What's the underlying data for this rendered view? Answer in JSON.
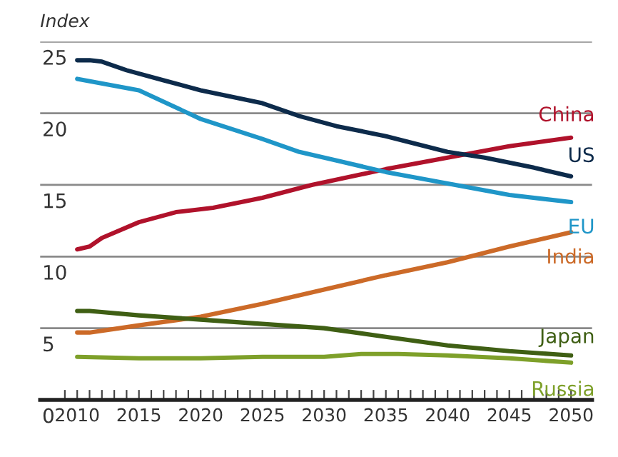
{
  "chart_data": {
    "type": "line",
    "ylabel": "Index",
    "xlim": [
      2007,
      2051.7
    ],
    "ylim": [
      0,
      25
    ],
    "yticks": [
      0,
      5,
      10,
      15,
      20,
      25
    ],
    "xticks": [
      {
        "value": 2009,
        "label": null
      },
      2010,
      {
        "value": 2011,
        "label": null
      },
      {
        "value": 2012,
        "label": null
      },
      {
        "value": 2013,
        "label": null
      },
      {
        "value": 2014,
        "label": null
      },
      2015,
      {
        "value": 2016,
        "label": null
      },
      {
        "value": 2017,
        "label": null
      },
      {
        "value": 2018,
        "label": null
      },
      {
        "value": 2019,
        "label": null
      },
      2020,
      {
        "value": 2021,
        "label": null
      },
      {
        "value": 2022,
        "label": null
      },
      {
        "value": 2023,
        "label": null
      },
      {
        "value": 2024,
        "label": null
      },
      2025,
      {
        "value": 2026,
        "label": null
      },
      {
        "value": 2027,
        "label": null
      },
      {
        "value": 2028,
        "label": null
      },
      {
        "value": 2029,
        "label": null
      },
      2030,
      {
        "value": 2031,
        "label": null
      },
      {
        "value": 2032,
        "label": null
      },
      {
        "value": 2033,
        "label": null
      },
      {
        "value": 2034,
        "label": null
      },
      2035,
      {
        "value": 2036,
        "label": null
      },
      {
        "value": 2037,
        "label": null
      },
      {
        "value": 2038,
        "label": null
      },
      {
        "value": 2039,
        "label": null
      },
      2040,
      {
        "value": 2041,
        "label": null
      },
      {
        "value": 2042,
        "label": null
      },
      {
        "value": 2043,
        "label": null
      },
      {
        "value": 2044,
        "label": null
      },
      2045,
      {
        "value": 2046,
        "label": null
      },
      {
        "value": 2047,
        "label": null
      },
      {
        "value": 2048,
        "label": null
      },
      {
        "value": 2049,
        "label": null
      },
      2050
    ],
    "grid": "y",
    "legend": false,
    "marker": "none",
    "line_style": "solid",
    "series": [
      {
        "name": "China",
        "color": "#b0122b",
        "x": [
          2010,
          2011,
          2012,
          2015,
          2018,
          2021,
          2025,
          2029,
          2035,
          2040,
          2045,
          2050
        ],
        "values": [
          10.5,
          10.7,
          11.3,
          12.4,
          13.1,
          13.4,
          14.1,
          15.0,
          16.1,
          16.9,
          17.7,
          18.3
        ]
      },
      {
        "name": "US",
        "color": "#0d2b4b",
        "x": [
          2010,
          2011,
          2012,
          2013,
          2014,
          2017,
          2020,
          2025,
          2028,
          2031,
          2035,
          2040,
          2043,
          2047,
          2050
        ],
        "values": [
          23.7,
          23.7,
          23.6,
          23.3,
          23.0,
          22.3,
          21.6,
          20.7,
          19.8,
          19.1,
          18.4,
          17.3,
          16.9,
          16.2,
          15.6
        ]
      },
      {
        "name": "EU",
        "color": "#1f96c8",
        "x": [
          2010,
          2015,
          2020,
          2025,
          2028,
          2031,
          2035,
          2040,
          2045,
          2050
        ],
        "values": [
          22.4,
          21.6,
          19.6,
          18.2,
          17.3,
          16.7,
          15.9,
          15.1,
          14.3,
          13.8
        ]
      },
      {
        "name": "India",
        "color": "#cc6a28",
        "x": [
          2010,
          2011,
          2015,
          2020,
          2025,
          2030,
          2035,
          2040,
          2045,
          2050
        ],
        "values": [
          4.7,
          4.7,
          5.2,
          5.8,
          6.7,
          7.7,
          8.7,
          9.6,
          10.7,
          11.7
        ]
      },
      {
        "name": "Japan",
        "color": "#3f5f14",
        "x": [
          2010,
          2011,
          2015,
          2020,
          2025,
          2030,
          2035,
          2040,
          2045,
          2050
        ],
        "values": [
          6.2,
          6.2,
          5.9,
          5.6,
          5.3,
          5.0,
          4.4,
          3.8,
          3.4,
          3.1
        ]
      },
      {
        "name": "Russia",
        "color": "#7ea02a",
        "x": [
          2010,
          2015,
          2020,
          2025,
          2030,
          2033,
          2036,
          2040,
          2045,
          2050
        ],
        "values": [
          3.0,
          2.9,
          2.9,
          3.0,
          3.0,
          3.2,
          3.2,
          3.1,
          2.9,
          2.6
        ]
      }
    ]
  }
}
